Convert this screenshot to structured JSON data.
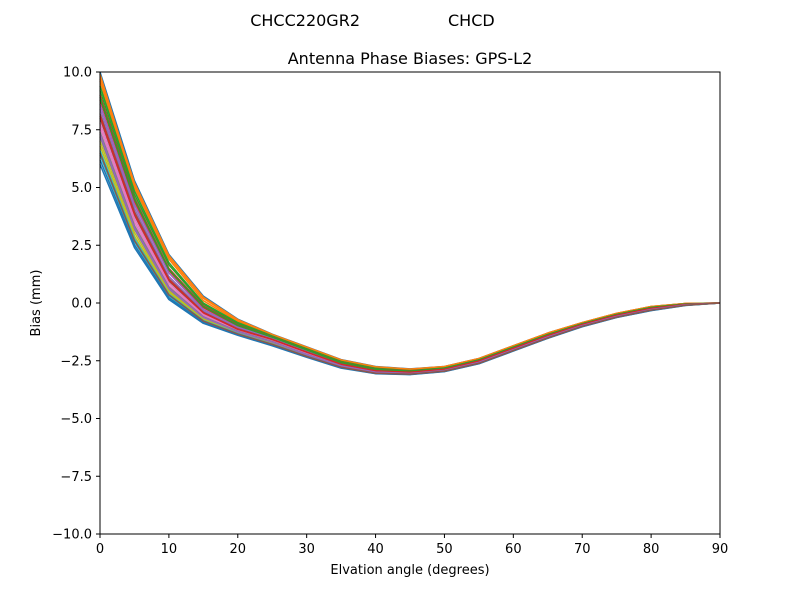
{
  "figure": {
    "suptitle_left": "CHCC220GR2",
    "suptitle_right": "CHCD"
  },
  "chart_data": {
    "type": "line",
    "title": "Antenna Phase Biases: GPS-L2",
    "xlabel": "Elvation angle (degrees)",
    "ylabel": "Bias (mm)",
    "xlim": [
      0,
      90
    ],
    "ylim": [
      -10,
      10
    ],
    "xticks": [
      0,
      10,
      20,
      30,
      40,
      50,
      60,
      70,
      80,
      90
    ],
    "yticks": [
      -10.0,
      -7.5,
      -5.0,
      -2.5,
      0.0,
      2.5,
      5.0,
      7.5,
      10.0
    ],
    "ytick_labels": [
      "−10.0",
      "−7.5",
      "−5.0",
      "−2.5",
      "0.0",
      "2.5",
      "5.0",
      "7.5",
      "10.0"
    ],
    "xtick_labels": [
      "0",
      "10",
      "20",
      "30",
      "40",
      "50",
      "60",
      "70",
      "80",
      "90"
    ],
    "grid": false,
    "legend": "none",
    "x": [
      0,
      5,
      10,
      15,
      20,
      25,
      30,
      35,
      40,
      45,
      50,
      55,
      60,
      65,
      70,
      75,
      80,
      85,
      90
    ],
    "series_colors": [
      "#1f77b4",
      "#ff7f0e",
      "#2ca02c",
      "#d62728",
      "#9467bd",
      "#8c564b",
      "#e377c2",
      "#7f7f7f",
      "#bcbd22",
      "#17becf"
    ],
    "series": [
      {
        "values": [
          10.0,
          5.3,
          2.1,
          0.3,
          -0.7,
          -1.35,
          -1.9,
          -2.45,
          -2.75,
          -2.85,
          -2.75,
          -2.4,
          -1.85,
          -1.3,
          -0.85,
          -0.45,
          -0.15,
          -0.02,
          0.0
        ]
      },
      {
        "values": [
          9.6,
          5.0,
          1.9,
          0.1,
          -0.8,
          -1.4,
          -1.95,
          -2.5,
          -2.8,
          -2.9,
          -2.78,
          -2.42,
          -1.87,
          -1.32,
          -0.86,
          -0.46,
          -0.16,
          -0.02,
          0.0
        ]
      },
      {
        "values": [
          9.2,
          4.7,
          1.65,
          -0.05,
          -0.9,
          -1.45,
          -2.0,
          -2.55,
          -2.85,
          -2.93,
          -2.8,
          -2.45,
          -1.9,
          -1.35,
          -0.88,
          -0.48,
          -0.18,
          -0.03,
          0.0
        ]
      },
      {
        "values": [
          8.8,
          4.4,
          1.4,
          -0.2,
          -1.0,
          -1.5,
          -2.05,
          -2.6,
          -2.88,
          -2.96,
          -2.83,
          -2.47,
          -1.92,
          -1.37,
          -0.9,
          -0.5,
          -0.2,
          -0.04,
          0.0
        ]
      },
      {
        "values": [
          8.4,
          4.1,
          1.15,
          -0.35,
          -1.1,
          -1.55,
          -2.1,
          -2.63,
          -2.92,
          -2.99,
          -2.86,
          -2.5,
          -1.95,
          -1.4,
          -0.92,
          -0.52,
          -0.22,
          -0.05,
          0.0
        ]
      },
      {
        "values": [
          8.0,
          3.8,
          0.95,
          -0.45,
          -1.15,
          -1.6,
          -2.15,
          -2.66,
          -2.95,
          -3.01,
          -2.88,
          -2.52,
          -1.97,
          -1.42,
          -0.94,
          -0.54,
          -0.24,
          -0.06,
          0.0
        ]
      },
      {
        "values": [
          7.6,
          3.5,
          0.75,
          -0.55,
          -1.2,
          -1.65,
          -2.2,
          -2.7,
          -2.98,
          -3.03,
          -2.9,
          -2.55,
          -2.0,
          -1.45,
          -0.96,
          -0.56,
          -0.26,
          -0.07,
          0.0
        ]
      },
      {
        "values": [
          7.2,
          3.2,
          0.6,
          -0.65,
          -1.25,
          -1.7,
          -2.25,
          -2.73,
          -3.0,
          -3.05,
          -2.92,
          -2.57,
          -2.02,
          -1.47,
          -0.98,
          -0.58,
          -0.28,
          -0.08,
          0.0
        ]
      },
      {
        "values": [
          6.8,
          2.9,
          0.45,
          -0.72,
          -1.3,
          -1.75,
          -2.28,
          -2.76,
          -3.02,
          -3.07,
          -2.94,
          -2.6,
          -2.05,
          -1.5,
          -1.0,
          -0.6,
          -0.3,
          -0.09,
          0.0
        ]
      },
      {
        "values": [
          6.4,
          2.65,
          0.3,
          -0.8,
          -1.35,
          -1.8,
          -2.32,
          -2.79,
          -3.04,
          -3.09,
          -2.96,
          -2.62,
          -2.07,
          -1.52,
          -1.02,
          -0.62,
          -0.32,
          -0.1,
          0.0
        ]
      },
      {
        "values": [
          6.0,
          2.4,
          0.15,
          -0.88,
          -1.4,
          -1.85,
          -2.35,
          -2.82,
          -3.06,
          -3.1,
          -2.97,
          -2.63,
          -2.08,
          -1.53,
          -1.03,
          -0.63,
          -0.33,
          -0.11,
          0.0
        ]
      },
      {
        "values": [
          9.9,
          5.1,
          2.0,
          0.2,
          -0.75,
          -1.38,
          -1.92,
          -2.47,
          -2.77,
          -2.87,
          -2.76,
          -2.41,
          -1.86,
          -1.31,
          -0.85,
          -0.45,
          -0.15,
          -0.02,
          0.0
        ]
      },
      {
        "values": [
          9.4,
          4.85,
          1.75,
          0.0,
          -0.85,
          -1.42,
          -1.97,
          -2.52,
          -2.82,
          -2.91,
          -2.79,
          -2.43,
          -1.88,
          -1.33,
          -0.87,
          -0.47,
          -0.17,
          -0.03,
          0.0
        ]
      },
      {
        "values": [
          9.0,
          4.55,
          1.5,
          -0.12,
          -0.95,
          -1.47,
          -2.02,
          -2.57,
          -2.86,
          -2.94,
          -2.82,
          -2.46,
          -1.91,
          -1.36,
          -0.89,
          -0.49,
          -0.19,
          -0.04,
          0.0
        ]
      },
      {
        "values": [
          8.6,
          4.25,
          1.3,
          -0.28,
          -1.05,
          -1.52,
          -2.07,
          -2.61,
          -2.9,
          -2.97,
          -2.84,
          -2.48,
          -1.93,
          -1.38,
          -0.91,
          -0.51,
          -0.21,
          -0.05,
          0.0
        ]
      },
      {
        "values": [
          8.2,
          3.95,
          1.05,
          -0.4,
          -1.12,
          -1.57,
          -2.12,
          -2.64,
          -2.93,
          -3.0,
          -2.87,
          -2.51,
          -1.96,
          -1.41,
          -0.93,
          -0.53,
          -0.23,
          -0.06,
          0.0
        ]
      },
      {
        "values": [
          7.8,
          3.65,
          0.85,
          -0.5,
          -1.18,
          -1.62,
          -2.17,
          -2.68,
          -2.96,
          -3.02,
          -2.89,
          -2.53,
          -1.98,
          -1.43,
          -0.95,
          -0.55,
          -0.25,
          -0.07,
          0.0
        ]
      },
      {
        "values": [
          7.4,
          3.35,
          0.68,
          -0.6,
          -1.22,
          -1.67,
          -2.22,
          -2.71,
          -2.99,
          -3.04,
          -2.91,
          -2.56,
          -2.01,
          -1.46,
          -0.97,
          -0.57,
          -0.27,
          -0.08,
          0.0
        ]
      },
      {
        "values": [
          7.0,
          3.05,
          0.52,
          -0.68,
          -1.28,
          -1.72,
          -2.26,
          -2.74,
          -3.01,
          -3.06,
          -2.93,
          -2.58,
          -2.03,
          -1.48,
          -0.99,
          -0.59,
          -0.29,
          -0.09,
          0.0
        ]
      },
      {
        "values": [
          6.6,
          2.78,
          0.38,
          -0.76,
          -1.32,
          -1.78,
          -2.3,
          -2.77,
          -3.03,
          -3.08,
          -2.95,
          -2.61,
          -2.06,
          -1.51,
          -1.01,
          -0.61,
          -0.31,
          -0.1,
          0.0
        ]
      },
      {
        "values": [
          6.2,
          2.52,
          0.22,
          -0.84,
          -1.38,
          -1.82,
          -2.33,
          -2.8,
          -3.05,
          -3.09,
          -2.96,
          -2.62,
          -2.07,
          -1.52,
          -1.02,
          -0.62,
          -0.32,
          -0.1,
          0.0
        ]
      },
      {
        "values": [
          9.7,
          5.2,
          2.05,
          0.25,
          -0.72,
          -1.36,
          -1.91,
          -2.46,
          -2.76,
          -2.86,
          -2.75,
          -2.4,
          -1.85,
          -1.3,
          -0.85,
          -0.45,
          -0.15,
          -0.02,
          0.0
        ]
      },
      {
        "values": [
          8.9,
          4.5,
          1.45,
          -0.15,
          -0.97,
          -1.48,
          -2.03,
          -2.58,
          -2.87,
          -2.95,
          -2.82,
          -2.46,
          -1.91,
          -1.36,
          -0.89,
          -0.49,
          -0.19,
          -0.04,
          0.0
        ]
      },
      {
        "values": [
          8.1,
          3.85,
          1.0,
          -0.42,
          -1.14,
          -1.58,
          -2.13,
          -2.65,
          -2.94,
          -3.0,
          -2.87,
          -2.51,
          -1.96,
          -1.41,
          -0.93,
          -0.53,
          -0.23,
          -0.06,
          0.0
        ]
      },
      {
        "values": [
          7.3,
          3.25,
          0.63,
          -0.62,
          -1.24,
          -1.69,
          -2.23,
          -2.72,
          -2.99,
          -3.05,
          -2.92,
          -2.57,
          -2.02,
          -1.47,
          -0.98,
          -0.58,
          -0.28,
          -0.08,
          0.0
        ]
      },
      {
        "values": [
          6.5,
          2.7,
          0.35,
          -0.78,
          -1.34,
          -1.79,
          -2.31,
          -2.78,
          -3.04,
          -3.08,
          -2.95,
          -2.61,
          -2.06,
          -1.51,
          -1.01,
          -0.61,
          -0.31,
          -0.1,
          0.0
        ]
      }
    ]
  }
}
